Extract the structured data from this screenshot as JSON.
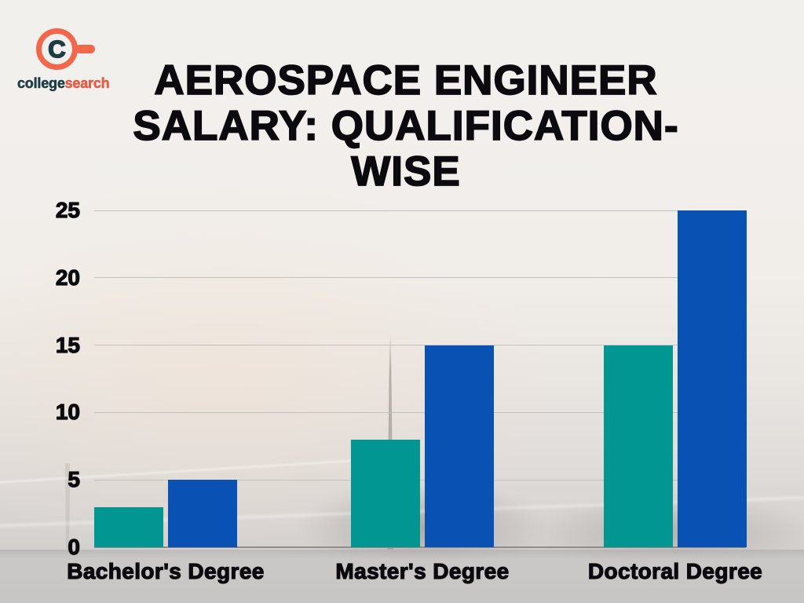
{
  "logo": {
    "monogram": "C",
    "brand_primary": "college",
    "brand_accent": "search",
    "accent_color": "#f2664c",
    "dark_color": "#1c3c46"
  },
  "title": "AEROSPACE ENGINEER SALARY: QUALIFICATION-WISE",
  "chart_data": {
    "type": "bar",
    "title": "AEROSPACE ENGINEER SALARY: QUALIFICATION-WISE",
    "categories": [
      "Bachelor's Degree",
      "Master's Degree",
      "Doctoral Degree"
    ],
    "series": [
      {
        "name": "teal",
        "color": "#029693",
        "values": [
          3,
          8,
          15
        ]
      },
      {
        "name": "blue",
        "color": "#0a51b4",
        "values": [
          5,
          15,
          25
        ]
      }
    ],
    "yticks": [
      0,
      5,
      10,
      15,
      20,
      25
    ],
    "ylim": [
      0,
      25
    ],
    "grid": true,
    "legend": "none",
    "xlabel": "",
    "ylabel": ""
  }
}
